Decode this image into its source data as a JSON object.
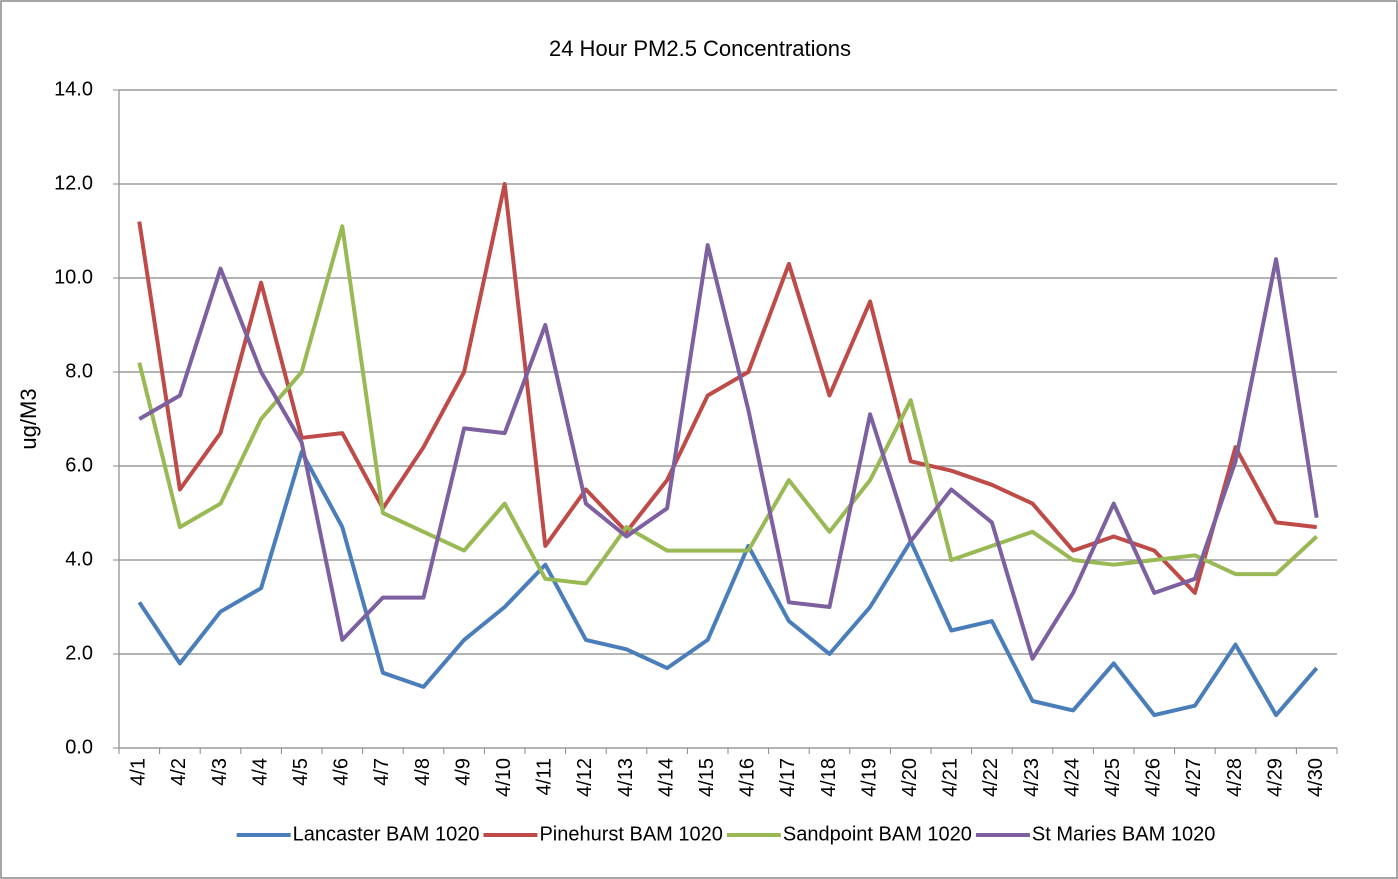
{
  "chart_data": {
    "type": "line",
    "title": "24 Hour PM2.5 Concentrations",
    "y_label": "ug/M3",
    "categories": [
      "4/1",
      "4/2",
      "4/3",
      "4/4",
      "4/5",
      "4/6",
      "4/7",
      "4/8",
      "4/9",
      "4/10",
      "4/11",
      "4/12",
      "4/13",
      "4/14",
      "4/15",
      "4/16",
      "4/17",
      "4/18",
      "4/19",
      "4/20",
      "4/21",
      "4/22",
      "4/23",
      "4/24",
      "4/25",
      "4/26",
      "4/27",
      "4/28",
      "4/29",
      "4/30"
    ],
    "series": [
      {
        "name": "Lancaster BAM 1020",
        "color": "#4a7ebb",
        "values": [
          3.1,
          1.8,
          2.9,
          3.4,
          6.3,
          4.7,
          1.6,
          1.3,
          2.3,
          3.0,
          3.9,
          2.3,
          2.1,
          1.7,
          2.3,
          4.3,
          2.7,
          2.0,
          3.0,
          4.4,
          2.5,
          2.7,
          1.0,
          0.8,
          1.8,
          0.7,
          0.9,
          2.2,
          0.7,
          1.7
        ]
      },
      {
        "name": "Pinehurst BAM 1020",
        "color": "#be4b48",
        "values": [
          11.2,
          5.5,
          6.7,
          9.9,
          6.6,
          6.7,
          5.1,
          6.4,
          8.0,
          12.0,
          4.3,
          5.5,
          4.6,
          5.7,
          7.5,
          8.0,
          10.3,
          7.5,
          9.5,
          6.1,
          5.9,
          5.6,
          5.2,
          4.2,
          4.5,
          4.2,
          3.3,
          6.4,
          4.8,
          4.7
        ]
      },
      {
        "name": "Sandpoint BAM 1020",
        "color": "#98b954",
        "values": [
          8.2,
          4.7,
          5.2,
          7.0,
          8.0,
          11.1,
          5.0,
          4.6,
          4.2,
          5.2,
          3.6,
          3.5,
          4.7,
          4.2,
          4.2,
          4.2,
          5.7,
          4.6,
          5.7,
          7.4,
          4.0,
          4.3,
          4.6,
          4.0,
          3.9,
          4.0,
          4.1,
          3.7,
          3.7,
          4.5
        ]
      },
      {
        "name": "St Maries BAM 1020",
        "color": "#7d60a0",
        "values": [
          7.0,
          7.5,
          10.2,
          8.0,
          6.5,
          2.3,
          3.2,
          3.2,
          6.8,
          6.7,
          9.0,
          5.2,
          4.5,
          5.1,
          10.7,
          7.2,
          3.1,
          3.0,
          7.1,
          4.4,
          5.5,
          4.8,
          1.9,
          3.3,
          5.2,
          3.3,
          3.6,
          6.1,
          10.4,
          4.9
        ]
      }
    ],
    "ylim": [
      0,
      14
    ],
    "yticks": [
      {
        "value": 0,
        "label": "0.0"
      },
      {
        "value": 2,
        "label": "2.0"
      },
      {
        "value": 4,
        "label": "4.0"
      },
      {
        "value": 6,
        "label": "6.0"
      },
      {
        "value": 8,
        "label": "8.0"
      },
      {
        "value": 10,
        "label": "10.0"
      },
      {
        "value": 12,
        "label": "12.0"
      },
      {
        "value": 14,
        "label": "14.0"
      }
    ],
    "grid": true,
    "legend": "bottom"
  }
}
